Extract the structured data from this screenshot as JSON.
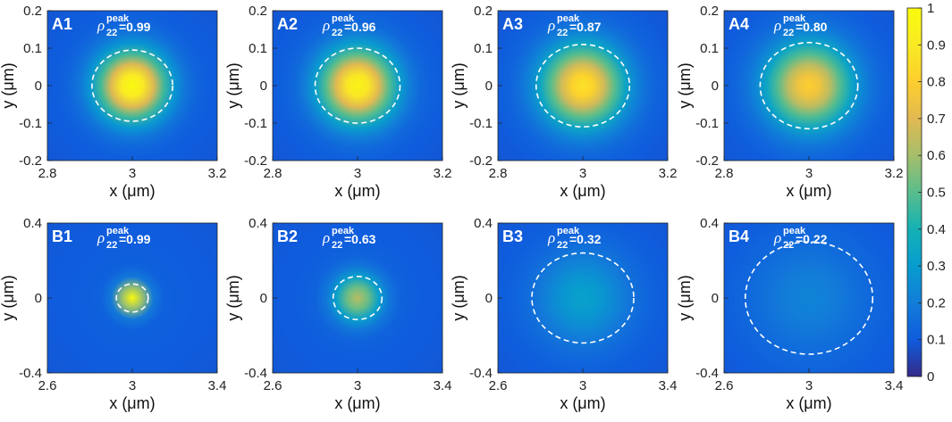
{
  "colors": {
    "axis": "#222222",
    "contour": "#ffffff",
    "colormap": "parula"
  },
  "chart_data": [
    {
      "type": "heatmap",
      "id": "A1",
      "label": "A1",
      "rho_symbol": "ρ",
      "rho_sub": "22",
      "rho_sup": "peak",
      "rho_value": "=0.99",
      "peak": 0.99,
      "contour_radius_um": 0.095,
      "core_width_um": 0.075,
      "xlim": [
        2.8,
        3.2
      ],
      "ylim": [
        -0.2,
        0.2
      ],
      "xticks": [
        "2.8",
        "3",
        "3.2"
      ],
      "yticks": [
        "0.2",
        "0.1",
        "0",
        "-0.1",
        "-0.2"
      ],
      "xlabel": "x (μm)",
      "ylabel": "y (μm)"
    },
    {
      "type": "heatmap",
      "id": "A2",
      "label": "A2",
      "rho_symbol": "ρ",
      "rho_sub": "22",
      "rho_sup": "peak",
      "rho_value": "=0.96",
      "peak": 0.96,
      "contour_radius_um": 0.1,
      "core_width_um": 0.08,
      "xlim": [
        2.8,
        3.2
      ],
      "ylim": [
        -0.2,
        0.2
      ],
      "xticks": [
        "2.8",
        "3",
        "3.2"
      ],
      "yticks": [
        "0.2",
        "0.1",
        "0",
        "-0.1",
        "-0.2"
      ],
      "xlabel": "x (μm)",
      "ylabel": "y (μm)"
    },
    {
      "type": "heatmap",
      "id": "A3",
      "label": "A3",
      "rho_symbol": "ρ",
      "rho_sub": "22",
      "rho_sup": "peak",
      "rho_value": "=0.87",
      "peak": 0.87,
      "contour_radius_um": 0.11,
      "core_width_um": 0.088,
      "xlim": [
        2.8,
        3.2
      ],
      "ylim": [
        -0.2,
        0.2
      ],
      "xticks": [
        "2.8",
        "3",
        "3.2"
      ],
      "yticks": [
        "0.2",
        "0.1",
        "0",
        "-0.1",
        "-0.2"
      ],
      "xlabel": "x (μm)",
      "ylabel": "y (μm)"
    },
    {
      "type": "heatmap",
      "id": "A4",
      "label": "A4",
      "rho_symbol": "ρ",
      "rho_sub": "22",
      "rho_sup": "peak",
      "rho_value": "=0.80",
      "peak": 0.8,
      "contour_radius_um": 0.115,
      "core_width_um": 0.092,
      "xlim": [
        2.8,
        3.2
      ],
      "ylim": [
        -0.2,
        0.2
      ],
      "xticks": [
        "2.8",
        "3",
        "3.2"
      ],
      "yticks": [
        "0.2",
        "0.1",
        "0",
        "-0.1",
        "-0.2"
      ],
      "xlabel": "x (μm)",
      "ylabel": "y (μm)"
    },
    {
      "type": "heatmap",
      "id": "B1",
      "label": "B1",
      "rho_symbol": "ρ",
      "rho_sub": "22",
      "rho_sup": "peak",
      "rho_value": "=0.99",
      "peak": 0.99,
      "contour_radius_um": 0.075,
      "core_width_um": 0.06,
      "xlim": [
        2.6,
        3.4
      ],
      "ylim": [
        -0.4,
        0.4
      ],
      "xticks": [
        "2.6",
        "3",
        "3.4"
      ],
      "yticks": [
        "0.4",
        "0",
        "-0.4"
      ],
      "xlabel": "x (μm)",
      "ylabel": "y (μm)"
    },
    {
      "type": "heatmap",
      "id": "B2",
      "label": "B2",
      "rho_symbol": "ρ",
      "rho_sub": "22",
      "rho_sup": "peak",
      "rho_value": "=0.63",
      "peak": 0.63,
      "contour_radius_um": 0.115,
      "core_width_um": 0.1,
      "xlim": [
        2.6,
        3.4
      ],
      "ylim": [
        -0.4,
        0.4
      ],
      "xticks": [
        "2.6",
        "3",
        "3.4"
      ],
      "yticks": [
        "0.4",
        "0",
        "-0.4"
      ],
      "xlabel": "x (μm)",
      "ylabel": "y (μm)"
    },
    {
      "type": "heatmap",
      "id": "B3",
      "label": "B3",
      "rho_symbol": "ρ",
      "rho_sub": "22",
      "rho_sup": "peak",
      "rho_value": "=0.32",
      "peak": 0.32,
      "contour_radius_um": 0.24,
      "core_width_um": 0.2,
      "xlim": [
        2.6,
        3.4
      ],
      "ylim": [
        -0.4,
        0.4
      ],
      "xticks": [
        "2.6",
        "3",
        "3.4"
      ],
      "yticks": [
        "0.4",
        "0",
        "-0.4"
      ],
      "xlabel": "x (μm)",
      "ylabel": "y (μm)"
    },
    {
      "type": "heatmap",
      "id": "B4",
      "label": "B4",
      "rho_symbol": "ρ",
      "rho_sub": "22",
      "rho_sup": "peak",
      "rho_value": "=0.22",
      "peak": 0.22,
      "contour_radius_um": 0.3,
      "core_width_um": 0.26,
      "xlim": [
        2.6,
        3.4
      ],
      "ylim": [
        -0.4,
        0.4
      ],
      "xticks": [
        "2.6",
        "3",
        "3.4"
      ],
      "yticks": [
        "0.4",
        "0",
        "-0.4"
      ],
      "xlabel": "x (μm)",
      "ylabel": "y (μm)"
    }
  ],
  "colorbar": {
    "min": 0,
    "max": 1,
    "ticks": [
      "1",
      "0.9",
      "0.8",
      "0.7",
      "0.6",
      "0.5",
      "0.4",
      "0.3",
      "0.2",
      "0.1",
      "0"
    ]
  }
}
